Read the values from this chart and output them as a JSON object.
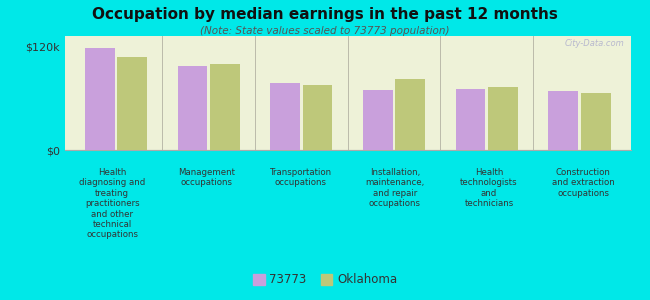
{
  "title": "Occupation by median earnings in the past 12 months",
  "subtitle": "(Note: State values scaled to 73773 population)",
  "background_color": "#00e8e8",
  "plot_bg_color": "#eef2d8",
  "categories": [
    "Health\ndiagnosing and\ntreating\npractitioners\nand other\ntechnical\noccupations",
    "Management\noccupations",
    "Transportation\noccupations",
    "Installation,\nmaintenance,\nand repair\noccupations",
    "Health\ntechnologists\nand\ntechnicians",
    "Construction\nand extraction\noccupations"
  ],
  "values_73773": [
    118000,
    97000,
    78000,
    70000,
    71000,
    68000
  ],
  "values_oklahoma": [
    108000,
    100000,
    75000,
    82000,
    73000,
    66000
  ],
  "color_73773": "#c9a0dc",
  "color_oklahoma": "#bec87a",
  "ylim": [
    0,
    132000
  ],
  "yticks": [
    0,
    120000
  ],
  "ytick_labels": [
    "$0",
    "$120k"
  ],
  "legend_labels": [
    "73773",
    "Oklahoma"
  ],
  "watermark": "City-Data.com"
}
